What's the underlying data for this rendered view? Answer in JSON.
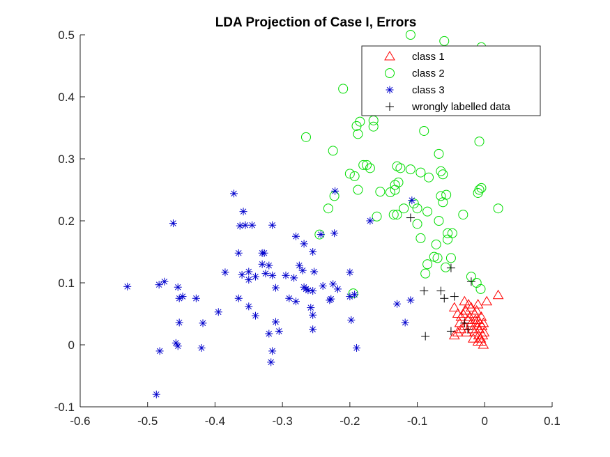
{
  "chart_data": {
    "type": "scatter",
    "title": "LDA Projection of Case I, Errors",
    "xlabel": "",
    "ylabel": "",
    "xlim": [
      -0.6,
      0.1
    ],
    "ylim": [
      -0.1,
      0.5
    ],
    "xticks": [
      "-0.6",
      "-0.5",
      "-0.4",
      "-0.3",
      "-0.2",
      "-0.1",
      "0",
      "0.1"
    ],
    "yticks": [
      "-0.1",
      "0",
      "0.1",
      "0.2",
      "0.3",
      "0.4",
      "0.5"
    ],
    "grid": false,
    "legend_position": "top-right",
    "series": [
      {
        "name": "class 1",
        "marker": "triangle",
        "color": "#ff0000",
        "points": [
          [
            0.02,
            0.08
          ],
          [
            0.003,
            0.07
          ],
          [
            -0.01,
            0.065
          ],
          [
            -0.03,
            0.07
          ],
          [
            -0.02,
            0.06
          ],
          [
            -0.04,
            0.05
          ],
          [
            -0.045,
            0.06
          ],
          [
            -0.035,
            0.045
          ],
          [
            -0.028,
            0.055
          ],
          [
            -0.015,
            0.05
          ],
          [
            -0.01,
            0.04
          ],
          [
            -0.005,
            0.045
          ],
          [
            -0.002,
            0.035
          ],
          [
            -0.012,
            0.03
          ],
          [
            -0.02,
            0.035
          ],
          [
            -0.025,
            0.04
          ],
          [
            -0.03,
            0.03
          ],
          [
            -0.035,
            0.025
          ],
          [
            -0.04,
            0.02
          ],
          [
            -0.045,
            0.015
          ],
          [
            -0.015,
            0.02
          ],
          [
            -0.008,
            0.025
          ],
          [
            -0.003,
            0.015
          ],
          [
            -0.006,
            0.01
          ],
          [
            -0.01,
            0.005
          ],
          [
            -0.002,
            0.0
          ],
          [
            -0.005,
            0.005
          ],
          [
            -0.018,
            0.025
          ],
          [
            -0.022,
            0.045
          ],
          [
            -0.032,
            0.05
          ],
          [
            -0.012,
            0.055
          ],
          [
            -0.007,
            0.035
          ],
          [
            -0.027,
            0.02
          ],
          [
            -0.037,
            0.035
          ],
          [
            -0.017,
            0.01
          ],
          [
            -0.001,
            0.02
          ],
          [
            -0.004,
            0.03
          ],
          [
            -0.024,
            0.065
          ],
          [
            -0.014,
            0.04
          ],
          [
            -0.009,
            0.015
          ]
        ]
      },
      {
        "name": "class 2",
        "marker": "circle",
        "color": "#00dd00",
        "points": [
          [
            -0.11,
            0.5
          ],
          [
            -0.06,
            0.49
          ],
          [
            -0.005,
            0.48
          ],
          [
            -0.21,
            0.413
          ],
          [
            -0.19,
            0.353
          ],
          [
            -0.265,
            0.335
          ],
          [
            -0.188,
            0.34
          ],
          [
            -0.185,
            0.36
          ],
          [
            -0.165,
            0.362
          ],
          [
            -0.165,
            0.352
          ],
          [
            -0.09,
            0.345
          ],
          [
            -0.008,
            0.328
          ],
          [
            -0.225,
            0.313
          ],
          [
            -0.068,
            0.308
          ],
          [
            -0.175,
            0.29
          ],
          [
            -0.17,
            0.285
          ],
          [
            -0.13,
            0.288
          ],
          [
            -0.125,
            0.285
          ],
          [
            -0.11,
            0.283
          ],
          [
            -0.095,
            0.278
          ],
          [
            -0.18,
            0.29
          ],
          [
            -0.2,
            0.276
          ],
          [
            -0.193,
            0.272
          ],
          [
            -0.065,
            0.28
          ],
          [
            -0.062,
            0.275
          ],
          [
            -0.083,
            0.27
          ],
          [
            -0.005,
            0.253
          ],
          [
            -0.008,
            0.25
          ],
          [
            -0.01,
            0.245
          ],
          [
            -0.133,
            0.258
          ],
          [
            -0.128,
            0.262
          ],
          [
            -0.133,
            0.25
          ],
          [
            -0.14,
            0.246
          ],
          [
            -0.155,
            0.247
          ],
          [
            -0.188,
            0.25
          ],
          [
            -0.223,
            0.24
          ],
          [
            -0.232,
            0.22
          ],
          [
            -0.065,
            0.24
          ],
          [
            -0.062,
            0.23
          ],
          [
            -0.057,
            0.242
          ],
          [
            -0.1,
            0.22
          ],
          [
            -0.105,
            0.228
          ],
          [
            -0.085,
            0.215
          ],
          [
            -0.12,
            0.22
          ],
          [
            -0.13,
            0.21
          ],
          [
            -0.135,
            0.21
          ],
          [
            -0.16,
            0.207
          ],
          [
            -0.032,
            0.21
          ],
          [
            -0.068,
            0.2
          ],
          [
            -0.1,
            0.195
          ],
          [
            -0.055,
            0.18
          ],
          [
            -0.048,
            0.18
          ],
          [
            -0.055,
            0.17
          ],
          [
            -0.095,
            0.172
          ],
          [
            -0.245,
            0.178
          ],
          [
            0.02,
            0.22
          ],
          [
            -0.085,
            0.13
          ],
          [
            -0.075,
            0.142
          ],
          [
            -0.07,
            0.14
          ],
          [
            -0.05,
            0.14
          ],
          [
            -0.088,
            0.115
          ],
          [
            -0.058,
            0.125
          ],
          [
            -0.02,
            0.11
          ],
          [
            -0.012,
            0.1
          ],
          [
            -0.006,
            0.09
          ],
          [
            -0.195,
            0.083
          ],
          [
            -0.072,
            0.162
          ]
        ]
      },
      {
        "name": "class 3",
        "marker": "asterisk",
        "color": "#0000cc",
        "points": [
          [
            -0.372,
            0.244
          ],
          [
            -0.222,
            0.248
          ],
          [
            -0.358,
            0.215
          ],
          [
            -0.363,
            0.192
          ],
          [
            -0.355,
            0.193
          ],
          [
            -0.345,
            0.193
          ],
          [
            -0.315,
            0.193
          ],
          [
            -0.462,
            0.196
          ],
          [
            -0.108,
            0.233
          ],
          [
            -0.17,
            0.2
          ],
          [
            -0.223,
            0.18
          ],
          [
            -0.243,
            0.178
          ],
          [
            -0.28,
            0.175
          ],
          [
            -0.268,
            0.163
          ],
          [
            -0.255,
            0.15
          ],
          [
            -0.33,
            0.148
          ],
          [
            -0.327,
            0.148
          ],
          [
            -0.365,
            0.148
          ],
          [
            -0.33,
            0.13
          ],
          [
            -0.32,
            0.128
          ],
          [
            -0.275,
            0.128
          ],
          [
            -0.385,
            0.117
          ],
          [
            -0.36,
            0.113
          ],
          [
            -0.35,
            0.118
          ],
          [
            -0.325,
            0.115
          ],
          [
            -0.315,
            0.112
          ],
          [
            -0.34,
            0.11
          ],
          [
            -0.35,
            0.105
          ],
          [
            -0.283,
            0.108
          ],
          [
            -0.27,
            0.12
          ],
          [
            -0.253,
            0.118
          ],
          [
            -0.2,
            0.117
          ],
          [
            -0.295,
            0.112
          ],
          [
            -0.53,
            0.094
          ],
          [
            -0.483,
            0.097
          ],
          [
            -0.475,
            0.102
          ],
          [
            -0.455,
            0.093
          ],
          [
            -0.453,
            0.075
          ],
          [
            -0.448,
            0.078
          ],
          [
            -0.428,
            0.075
          ],
          [
            -0.31,
            0.092
          ],
          [
            -0.268,
            0.093
          ],
          [
            -0.265,
            0.09
          ],
          [
            -0.262,
            0.088
          ],
          [
            -0.255,
            0.087
          ],
          [
            -0.24,
            0.095
          ],
          [
            -0.225,
            0.098
          ],
          [
            -0.218,
            0.09
          ],
          [
            -0.193,
            0.081
          ],
          [
            -0.2,
            0.078
          ],
          [
            -0.228,
            0.074
          ],
          [
            -0.23,
            0.072
          ],
          [
            -0.365,
            0.075
          ],
          [
            -0.35,
            0.062
          ],
          [
            -0.29,
            0.075
          ],
          [
            -0.28,
            0.07
          ],
          [
            -0.258,
            0.06
          ],
          [
            -0.255,
            0.048
          ],
          [
            -0.395,
            0.053
          ],
          [
            -0.418,
            0.035
          ],
          [
            -0.453,
            0.036
          ],
          [
            -0.34,
            0.047
          ],
          [
            -0.31,
            0.037
          ],
          [
            -0.305,
            0.022
          ],
          [
            -0.32,
            0.018
          ],
          [
            -0.255,
            0.025
          ],
          [
            -0.198,
            0.04
          ],
          [
            -0.13,
            0.066
          ],
          [
            -0.11,
            0.072
          ],
          [
            -0.118,
            0.036
          ],
          [
            -0.458,
            0.003
          ],
          [
            -0.455,
            -0.002
          ],
          [
            -0.42,
            -0.005
          ],
          [
            -0.482,
            -0.01
          ],
          [
            -0.315,
            -0.01
          ],
          [
            -0.19,
            -0.005
          ],
          [
            -0.317,
            -0.028
          ],
          [
            -0.487,
            -0.08
          ]
        ]
      },
      {
        "name": "wrongly labelled data",
        "marker": "plus",
        "color": "#000000",
        "points": [
          [
            -0.11,
            0.205
          ],
          [
            -0.05,
            0.124
          ],
          [
            -0.02,
            0.102
          ],
          [
            -0.09,
            0.087
          ],
          [
            -0.065,
            0.087
          ],
          [
            -0.06,
            0.075
          ],
          [
            -0.045,
            0.078
          ],
          [
            -0.05,
            0.022
          ],
          [
            -0.088,
            0.014
          ],
          [
            -0.03,
            0.035
          ],
          [
            -0.025,
            0.025
          ]
        ]
      }
    ]
  }
}
